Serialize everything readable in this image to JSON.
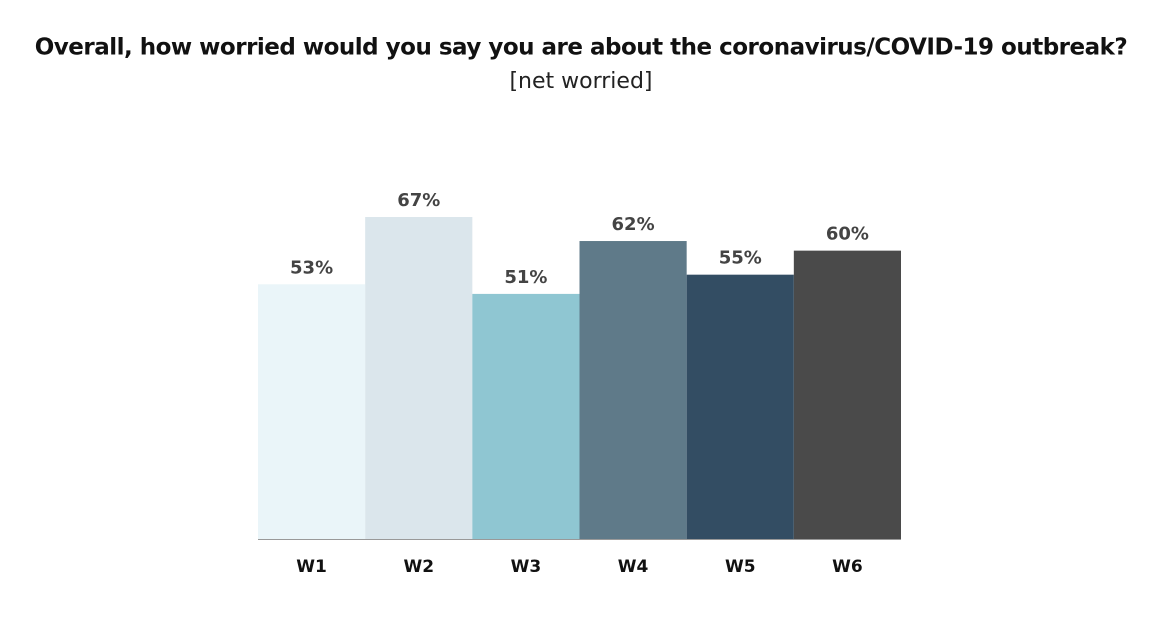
{
  "chart_data": {
    "type": "bar",
    "title": "Overall, how worried would you say you are about the coronavirus/COVID-19 outbreak?",
    "subtitle": "[net worried]",
    "categories": [
      "W1",
      "W2",
      "W3",
      "W4",
      "W5",
      "W6"
    ],
    "values": [
      53,
      67,
      51,
      62,
      55,
      60
    ],
    "value_labels": [
      "53%",
      "67%",
      "51%",
      "62%",
      "55%",
      "60%"
    ],
    "colors": [
      "#eaf5f9",
      "#dbe6ec",
      "#8fc6d2",
      "#5f7a89",
      "#334d63",
      "#4a4a4a"
    ]
  }
}
